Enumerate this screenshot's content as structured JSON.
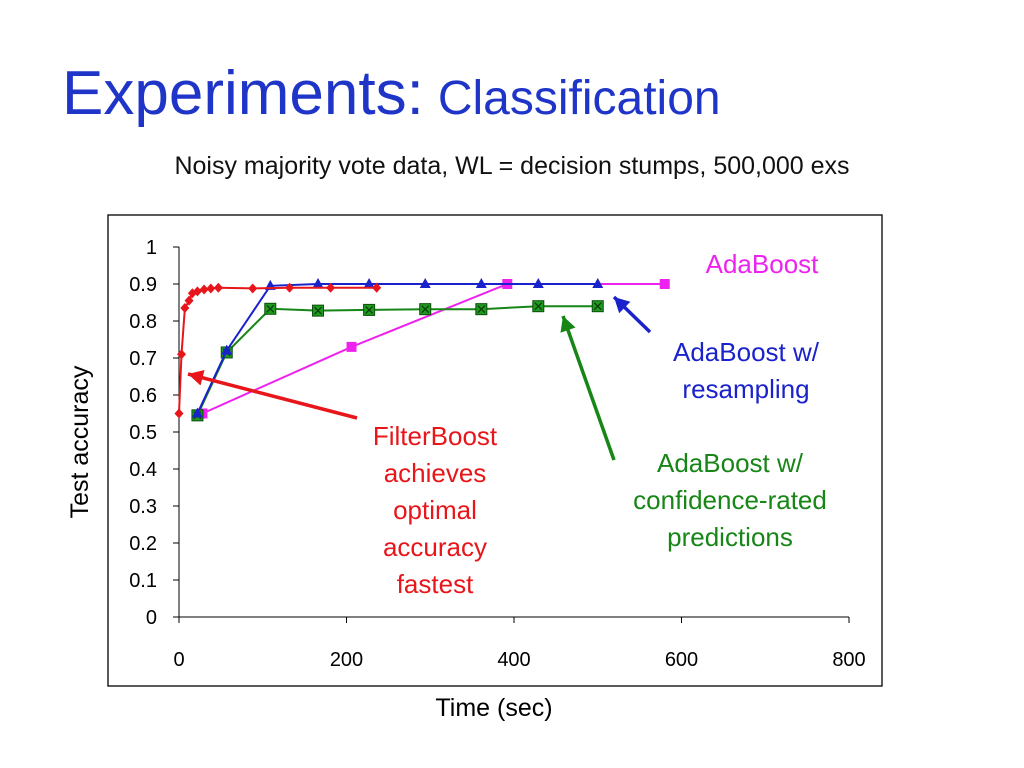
{
  "slide": {
    "title": "Experiments:",
    "title_suffix": "Classification",
    "subtitle": "Noisy majority vote data, WL = decision stumps, 500,000 exs"
  },
  "annotations": {
    "adaboost": "AdaBoost",
    "resampling": [
      "AdaBoost w/",
      "resampling"
    ],
    "confidence": [
      "AdaBoost w/",
      "confidence-rated",
      "predictions"
    ],
    "filterboost": [
      "FilterBoost",
      "achieves",
      "optimal",
      "accuracy",
      "fastest"
    ]
  },
  "colors": {
    "title": "#1f35c8",
    "filterboost": "#e8161a",
    "adaboost": "#ee22ee",
    "resampling": "#1a22cc",
    "confidence": "#178617",
    "confidence_marker": "#1f9a1f"
  },
  "chart_data": {
    "type": "line",
    "xlabel": "Time (sec)",
    "ylabel": "Test accuracy",
    "xlim": [
      0,
      800
    ],
    "ylim": [
      0,
      1
    ],
    "xticks": [
      0,
      200,
      400,
      600,
      800
    ],
    "yticks": [
      0,
      0.1,
      0.2,
      0.3,
      0.4,
      0.5,
      0.6,
      0.7,
      0.8,
      0.9,
      1
    ],
    "ytick_labels": [
      "0",
      "0.1",
      "0.2",
      "0.3",
      "0.4",
      "0.5",
      "0.6",
      "0.7",
      "0.8",
      "0.9",
      "1"
    ],
    "grid": false,
    "series": [
      {
        "key": "filterboost",
        "marker": "diamond",
        "x": [
          0,
          3,
          7,
          12,
          16,
          22,
          30,
          38,
          47,
          88,
          132,
          181,
          236
        ],
        "y": [
          0.55,
          0.71,
          0.835,
          0.855,
          0.875,
          0.88,
          0.885,
          0.888,
          0.89,
          0.888,
          0.89,
          0.89,
          0.89
        ]
      },
      {
        "key": "adaboost",
        "marker": "square",
        "x": [
          28,
          206,
          392,
          580
        ],
        "y": [
          0.55,
          0.73,
          0.9,
          0.9
        ]
      },
      {
        "key": "resampling",
        "marker": "triangle",
        "x": [
          22,
          57,
          109,
          166,
          227,
          294,
          361,
          429,
          500
        ],
        "y": [
          0.55,
          0.72,
          0.895,
          0.9,
          0.9,
          0.9,
          0.9,
          0.9,
          0.9
        ]
      },
      {
        "key": "confidence",
        "marker": "square-x",
        "x": [
          22,
          57,
          109,
          166,
          227,
          294,
          361,
          429,
          500
        ],
        "y": [
          0.545,
          0.715,
          0.833,
          0.828,
          0.83,
          0.832,
          0.832,
          0.84,
          0.84
        ]
      }
    ]
  }
}
